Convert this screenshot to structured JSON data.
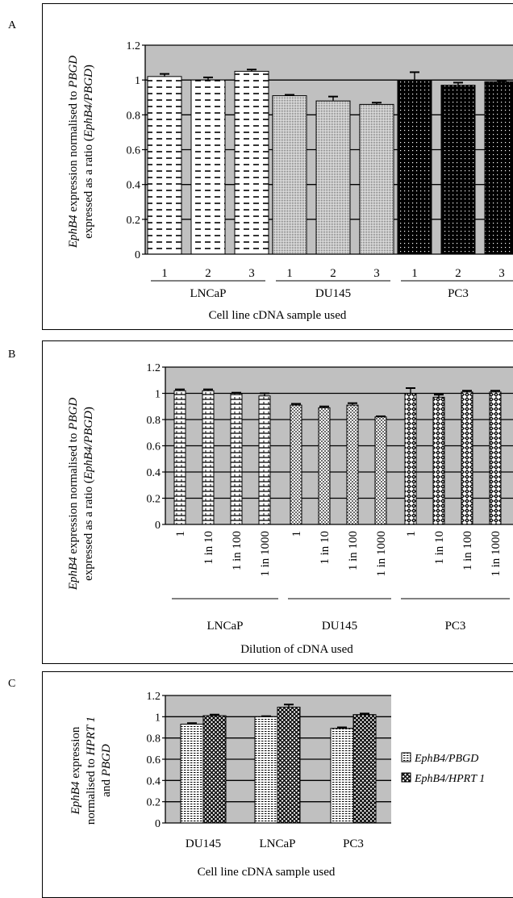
{
  "chart_data": [
    {
      "panel_label": "A",
      "type": "bar",
      "ylabel_italic": "EphB4",
      "ylabel_line1_rest": " expression normalised to ",
      "ylabel_line1_italic2": "PBGD",
      "ylabel_line2": "expressed as a ratio (",
      "ylabel_line2_italic": "EphB4/PBGD",
      "ylabel_line2_end": ")",
      "xlabel": "Cell line cDNA sample used",
      "ylim": [
        0,
        1.2
      ],
      "yticks": [
        "0",
        "0.2",
        "0.4",
        "0.6",
        "0.8",
        "1",
        "1.2"
      ],
      "groups": [
        {
          "name": "LNCaP",
          "categories": [
            "1",
            "2",
            "3"
          ],
          "values": [
            1.02,
            1.0,
            1.05
          ],
          "errors": [
            0.015,
            0.015,
            0.01
          ]
        },
        {
          "name": "DU145",
          "categories": [
            "1",
            "2",
            "3"
          ],
          "values": [
            0.91,
            0.88,
            0.86
          ],
          "errors": [
            0.005,
            0.025,
            0.01
          ]
        },
        {
          "name": "PC3",
          "categories": [
            "1",
            "2",
            "3"
          ],
          "values": [
            1.0,
            0.97,
            0.99
          ],
          "errors": [
            0.045,
            0.015,
            0.005
          ]
        }
      ],
      "grid": true,
      "background": "#c0c0c0"
    },
    {
      "panel_label": "B",
      "type": "bar",
      "ylabel_italic": "EphB4",
      "ylabel_line1_rest": " expression normalised to ",
      "ylabel_line1_italic2": "PBGD",
      "ylabel_line2": "expressed as a ratio (",
      "ylabel_line2_italic": "EphB4/PBGD",
      "ylabel_line2_end": ")",
      "xlabel": "Dilution of cDNA used",
      "ylim": [
        0,
        1.2
      ],
      "yticks": [
        "0",
        "0.2",
        "0.4",
        "0.6",
        "0.8",
        "1",
        "1.2"
      ],
      "groups": [
        {
          "name": "LNCaP",
          "categories": [
            "1",
            "1 in 10",
            "1 in 100",
            "1 in 1000"
          ],
          "values": [
            1.02,
            1.02,
            1.0,
            0.98
          ],
          "errors": [
            0.01,
            0.01,
            0.005,
            0.02
          ]
        },
        {
          "name": "DU145",
          "categories": [
            "1",
            "1 in 10",
            "1 in 100",
            "1 in 1000"
          ],
          "values": [
            0.91,
            0.89,
            0.91,
            0.82
          ],
          "errors": [
            0.01,
            0.01,
            0.015,
            0.005
          ]
        },
        {
          "name": "PC3",
          "categories": [
            "1",
            "1 in 10",
            "1 in 100",
            "1 in 1000"
          ],
          "values": [
            1.0,
            0.97,
            1.01,
            1.01
          ],
          "errors": [
            0.04,
            0.02,
            0.01,
            0.01
          ]
        }
      ],
      "grid": true,
      "background": "#c0c0c0"
    },
    {
      "panel_label": "C",
      "type": "bar",
      "ylabel_italic": "EphB4",
      "ylabel_line1_rest": " expression",
      "ylabel_line2": "normalised to ",
      "ylabel_line2_italic": "HPRT 1",
      "ylabel_line3": "and ",
      "ylabel_line3_italic": "PBGD",
      "xlabel": "Cell line cDNA sample used",
      "ylim": [
        0,
        1.2
      ],
      "yticks": [
        "0",
        "0.2",
        "0.4",
        "0.6",
        "0.8",
        "1",
        "1.2"
      ],
      "categories": [
        "DU145",
        "LNCaP",
        "PC3"
      ],
      "series": [
        {
          "name": "EphB4/PBGD",
          "values": [
            0.93,
            1.0,
            0.89
          ],
          "errors": [
            0.01,
            0.005,
            0.01
          ]
        },
        {
          "name": "EphB4/HPRT 1",
          "values": [
            1.01,
            1.09,
            1.02
          ],
          "errors": [
            0.01,
            0.025,
            0.01
          ]
        }
      ],
      "legend_position": "right",
      "grid": true,
      "background": "#c0c0c0"
    }
  ]
}
